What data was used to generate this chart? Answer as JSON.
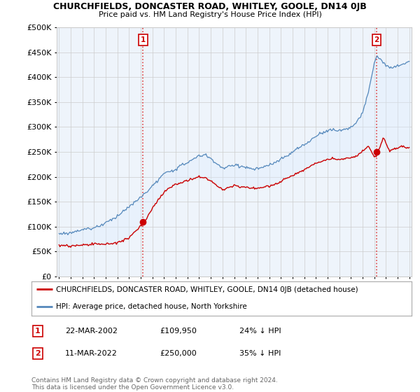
{
  "title": "CHURCHFIELDS, DONCASTER ROAD, WHITLEY, GOOLE, DN14 0JB",
  "subtitle": "Price paid vs. HM Land Registry's House Price Index (HPI)",
  "legend_label_red": "CHURCHFIELDS, DONCASTER ROAD, WHITLEY, GOOLE, DN14 0JB (detached house)",
  "legend_label_blue": "HPI: Average price, detached house, North Yorkshire",
  "transaction1_date": "22-MAR-2002",
  "transaction1_price": "£109,950",
  "transaction1_hpi": "24% ↓ HPI",
  "transaction2_date": "11-MAR-2022",
  "transaction2_price": "£250,000",
  "transaction2_hpi": "35% ↓ HPI",
  "footer": "Contains HM Land Registry data © Crown copyright and database right 2024.\nThis data is licensed under the Open Government Licence v3.0.",
  "red_color": "#cc0000",
  "blue_color": "#5588bb",
  "fill_color": "#ddeeff",
  "vline_color": "#dd4444",
  "grid_color": "#cccccc",
  "background_color": "#ffffff",
  "plot_bg_color": "#eef4fb",
  "ylim": [
    0,
    500000
  ],
  "yticks": [
    0,
    50000,
    100000,
    150000,
    200000,
    250000,
    300000,
    350000,
    400000,
    450000,
    500000
  ],
  "year_start": 1995,
  "year_end": 2025,
  "transaction1_year": 2002.2,
  "transaction2_year": 2022.2,
  "transaction1_price_val": 109950,
  "transaction2_price_val": 250000
}
